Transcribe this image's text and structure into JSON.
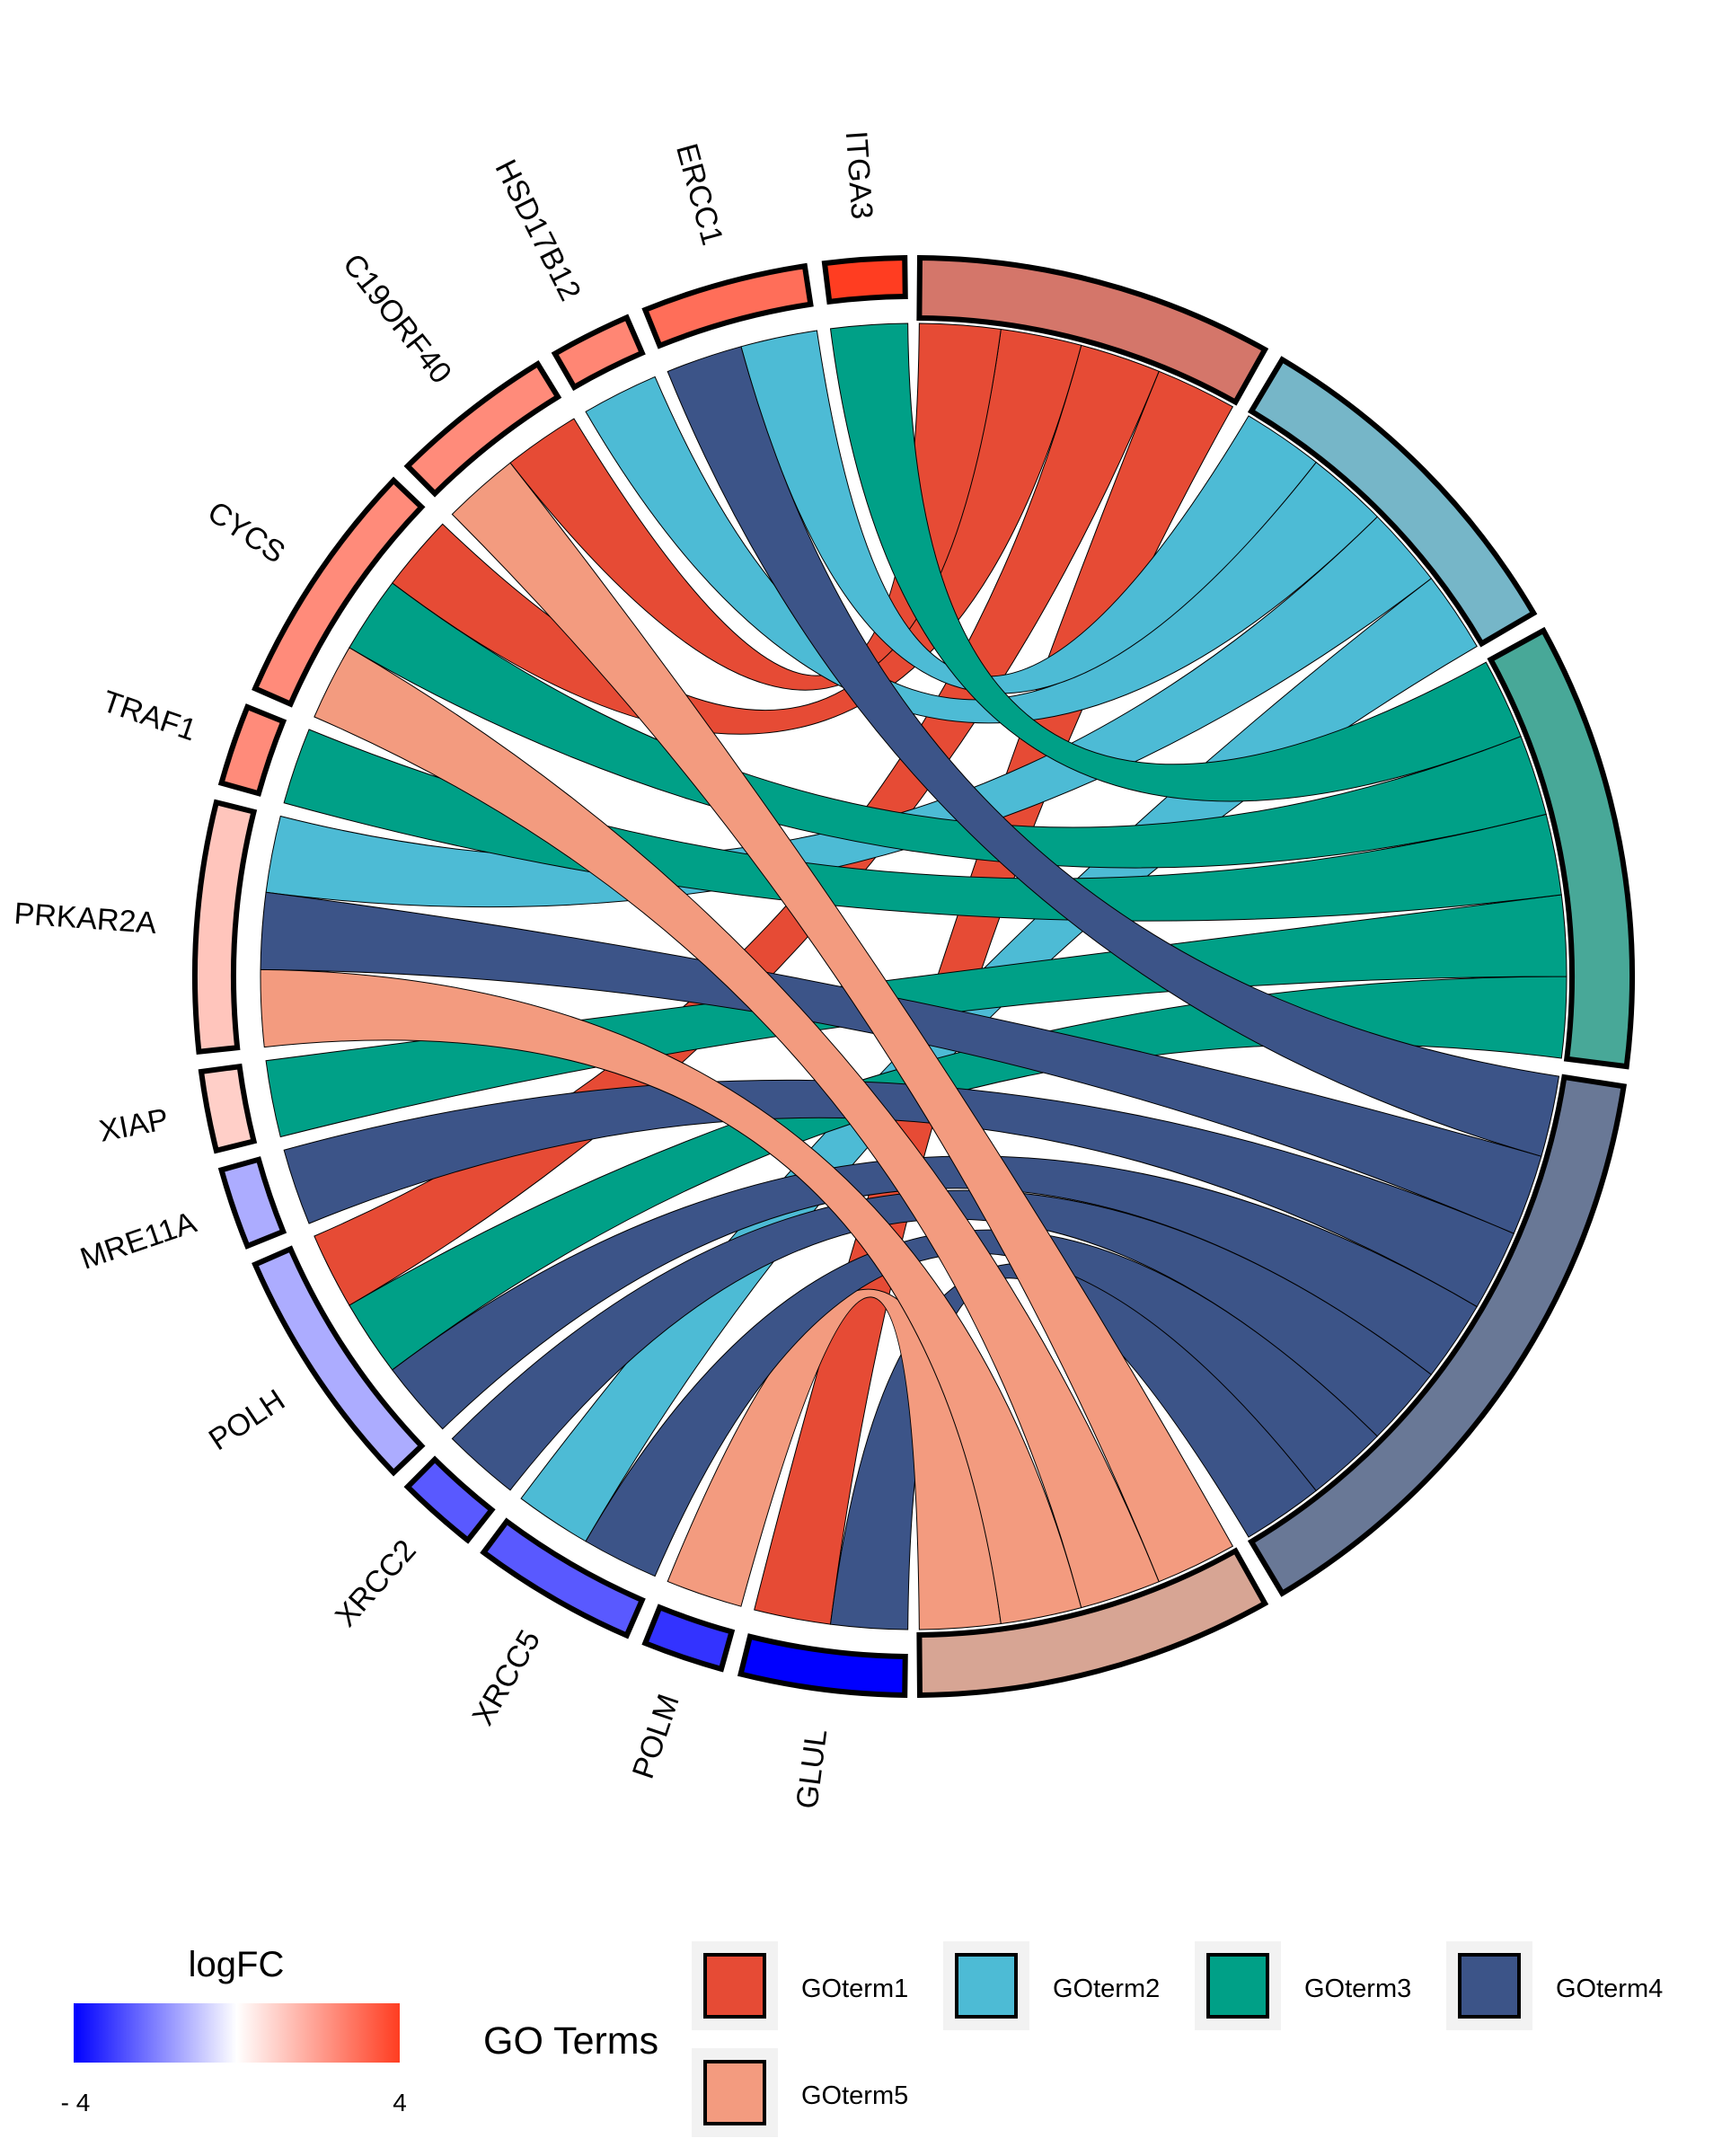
{
  "chart_data": {
    "type": "chord",
    "title": "",
    "genes": [
      {
        "name": "GLUL",
        "logFC": -4.0,
        "terms": [
          1,
          4
        ]
      },
      {
        "name": "POLM",
        "logFC": -3.2,
        "terms": [
          5
        ]
      },
      {
        "name": "XRCC5",
        "logFC": -2.6,
        "terms": [
          2,
          4
        ]
      },
      {
        "name": "XRCC2",
        "logFC": -2.6,
        "terms": [
          4
        ]
      },
      {
        "name": "POLH",
        "logFC": -1.3,
        "terms": [
          1,
          3,
          4
        ]
      },
      {
        "name": "MRE11A",
        "logFC": -1.3,
        "terms": [
          4
        ]
      },
      {
        "name": "XIAP",
        "logFC": 1.0,
        "terms": [
          3
        ]
      },
      {
        "name": "PRKAR2A",
        "logFC": 1.2,
        "terms": [
          2,
          4,
          5
        ]
      },
      {
        "name": "TRAF1",
        "logFC": 2.4,
        "terms": [
          3
        ]
      },
      {
        "name": "CYCS",
        "logFC": 2.4,
        "terms": [
          1,
          3,
          5
        ]
      },
      {
        "name": "C19ORF40",
        "logFC": 2.4,
        "terms": [
          1,
          5
        ]
      },
      {
        "name": "HSD17B12",
        "logFC": 2.5,
        "terms": [
          2
        ]
      },
      {
        "name": "ERCC1",
        "logFC": 3.0,
        "terms": [
          2,
          4
        ]
      },
      {
        "name": "ITGA3",
        "logFC": 4.0,
        "terms": [
          3
        ]
      }
    ],
    "go_terms": [
      {
        "id": 1,
        "name": "GOterm1",
        "color": "#E64B35",
        "ring_color": "#D4766A"
      },
      {
        "id": 2,
        "name": "GOterm2",
        "color": "#4DBBD5",
        "ring_color": "#76B6C8"
      },
      {
        "id": 3,
        "name": "GOterm3",
        "color": "#00A087",
        "ring_color": "#48A898"
      },
      {
        "id": 4,
        "name": "GOterm4",
        "color": "#3C5488",
        "ring_color": "#697896"
      },
      {
        "id": 5,
        "name": "GOterm5",
        "color": "#F39B7F",
        "ring_color": "#D7A594"
      }
    ],
    "logfc_scale": {
      "min": -4,
      "max": 4,
      "low_color": "#0000FF",
      "mid_color": "#FFFFFF",
      "high_color": "#FF3D21"
    }
  },
  "legend": {
    "logfc_title": "logFC",
    "logfc_min_label": "- 4",
    "logfc_max_label": "4",
    "go_title": "GO Terms"
  }
}
